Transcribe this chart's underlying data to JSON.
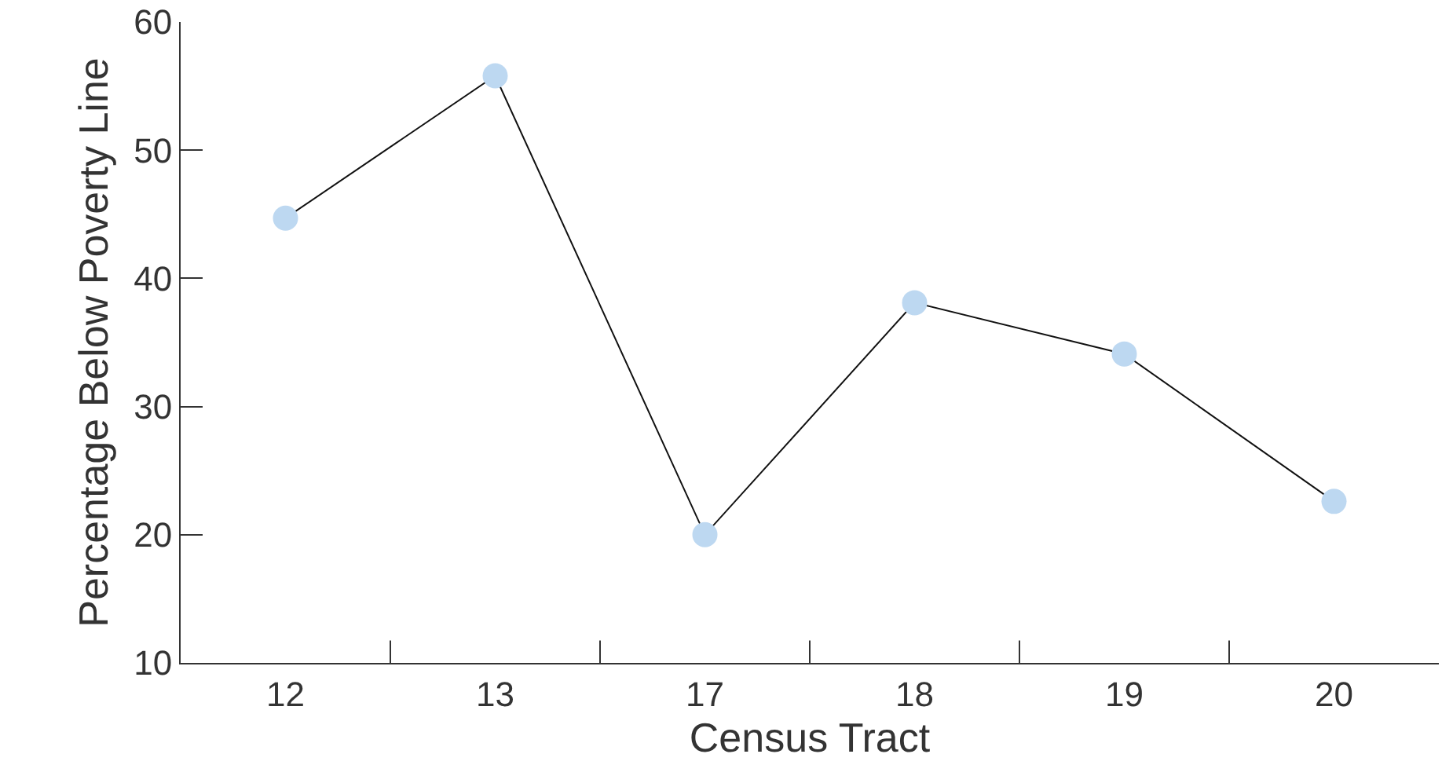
{
  "chart_data": {
    "type": "line",
    "xlabel": "Census Tract",
    "ylabel": "Percentage Below Poverty Line",
    "categories": [
      "12",
      "13",
      "17",
      "18",
      "19",
      "20"
    ],
    "series": [
      {
        "color": "#bdd8f1",
        "values": [
          44.7,
          55.8,
          20,
          38.1,
          34.1,
          22.6
        ]
      }
    ],
    "ylim": [
      10,
      60
    ],
    "yticks": [
      10,
      20,
      30,
      40,
      50,
      60
    ],
    "legend": false,
    "marker": "circle",
    "line_style": "solid"
  }
}
